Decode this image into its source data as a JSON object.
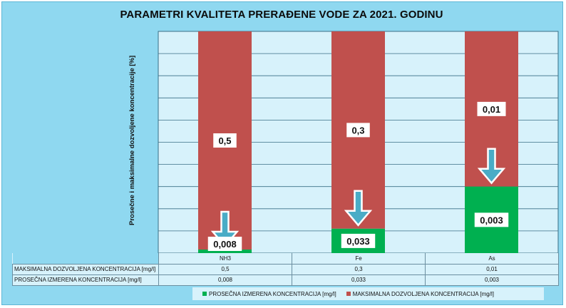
{
  "chart_data": {
    "type": "bar",
    "stacked": true,
    "title": "PARAMETRI  KVALITETA PRERAĐENE VODE ZA 2021. GODINU",
    "ylabel": "Prosečne i maksimalne dozvoljene koncentracije [%]",
    "categories": [
      "NH3",
      "Fe",
      "As"
    ],
    "y_unit": "percent of maximum allowed concentration",
    "ylim": [
      0,
      100
    ],
    "grid": true,
    "legend_position": "bottom",
    "series": [
      {
        "name": "PROSEČNA IZMERENA KONCENTRACIJA [mg/l]",
        "color": "#00b050",
        "labels": [
          "0,008",
          "0,033",
          "0,003"
        ],
        "values": [
          0.008,
          0.033,
          0.003
        ]
      },
      {
        "name": "MAKSIMALNA DOZVOLJENA KONCENTRACIJA [mg/l]",
        "color": "#c0504d",
        "labels": [
          "0,5",
          "0,3",
          "0,01"
        ],
        "values": [
          0.5,
          0.3,
          0.01
        ]
      }
    ],
    "table": {
      "rows": [
        {
          "label": "MAKSIMALNA DOZVOLJENA KONCENTRACIJA [mg/l]",
          "values": [
            "0,5",
            "0,3",
            "0,01"
          ]
        },
        {
          "label": "PROSEČNA IZMERENA KONCENTRACIJA [mg/l]",
          "values": [
            "0,008",
            "0,033",
            "0,003"
          ]
        }
      ]
    },
    "colors": {
      "background": "#8fd8f0",
      "plot_area": "#d7f2fb",
      "gridline": "#3a6f86",
      "arrow": "#4aacc6"
    }
  }
}
